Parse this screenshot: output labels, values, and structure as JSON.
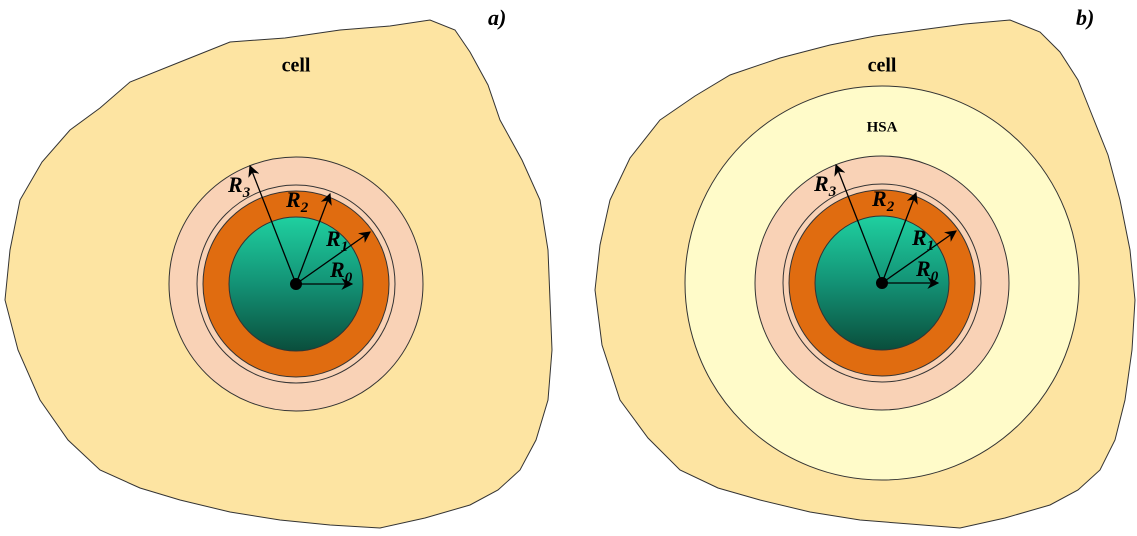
{
  "panels": [
    {
      "label": "a)",
      "cell": "cell",
      "radii": [
        {
          "letter": "R",
          "sub": "3"
        },
        {
          "letter": "R",
          "sub": "2"
        },
        {
          "letter": "R",
          "sub": "1"
        },
        {
          "letter": "R",
          "sub": "0"
        }
      ]
    },
    {
      "label": "b)",
      "cell": "cell",
      "hsa": "HSA",
      "radii": [
        {
          "letter": "R",
          "sub": "3"
        },
        {
          "letter": "R",
          "sub": "2"
        },
        {
          "letter": "R",
          "sub": "1"
        },
        {
          "letter": "R",
          "sub": "0"
        }
      ]
    }
  ]
}
